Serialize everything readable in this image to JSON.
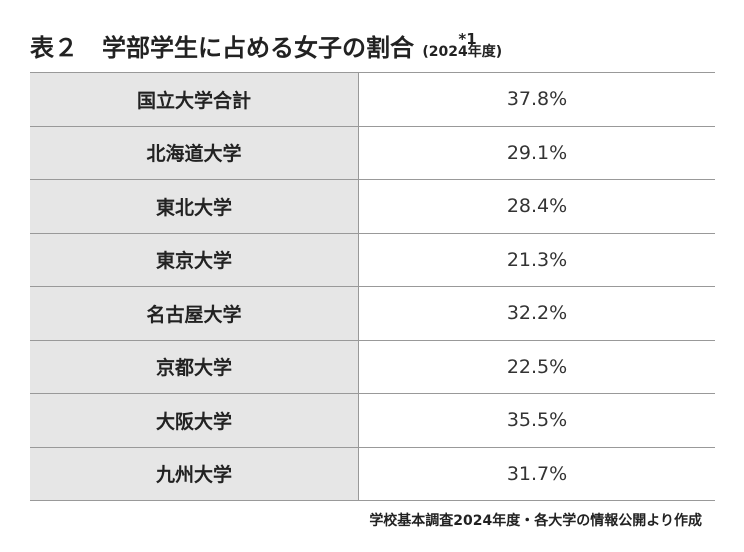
{
  "header": {
    "title": "表２　学部学生に占める女子の割合",
    "subtitle": "(2024年度)",
    "note_mark": "*1"
  },
  "table": {
    "rows": [
      [
        "国立大学合計",
        "37.8%"
      ],
      [
        "北海道大学",
        "29.1%"
      ],
      [
        "東北大学",
        "28.4%"
      ],
      [
        "東京大学",
        "21.3%"
      ],
      [
        "名古屋大学",
        "32.2%"
      ],
      [
        "京都大学",
        "22.5%"
      ],
      [
        "大阪大学",
        "35.5%"
      ],
      [
        "九州大学",
        "31.7%"
      ]
    ]
  },
  "footer": {
    "source": "学校基本調査2024年度・各大学の情報公開より作成"
  }
}
